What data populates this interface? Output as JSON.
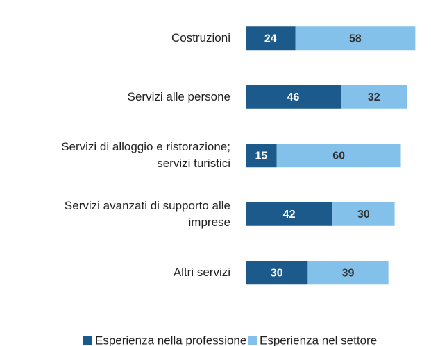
{
  "chart_data": {
    "type": "bar",
    "orientation": "horizontal",
    "stacked": true,
    "categories": [
      "Costruzioni",
      "Servizi alle persone",
      "Servizi di alloggio e ristorazione;\nservizi turistici",
      "Servizi avanzati di supporto alle\nimprese",
      "Altri servizi"
    ],
    "series": [
      {
        "name": "Esperienza nella professione",
        "color": "#1b5a8a",
        "values": [
          24,
          46,
          15,
          42,
          30
        ]
      },
      {
        "name": "Esperienza nel settore",
        "color": "#84c1ea",
        "values": [
          58,
          32,
          60,
          30,
          39
        ]
      }
    ],
    "legend": "bottom"
  }
}
